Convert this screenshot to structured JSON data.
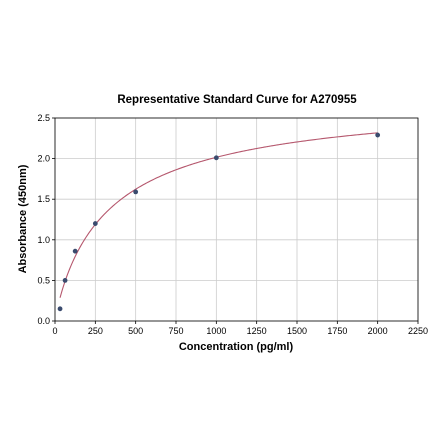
{
  "chart_data": {
    "type": "scatter",
    "title": "Representative Standard Curve for A270955",
    "xlabel": "Concentration (pg/ml)",
    "ylabel": "Absorbance (450nm)",
    "xlim": [
      0,
      2250
    ],
    "ylim": [
      0,
      2.5
    ],
    "xticks": [
      0,
      250,
      500,
      750,
      1000,
      1250,
      1500,
      1750,
      2000,
      2250
    ],
    "yticks": [
      0.0,
      0.5,
      1.0,
      1.5,
      2.0,
      2.5
    ],
    "xtick_labels": [
      "0",
      "250",
      "500",
      "750",
      "1000",
      "1250",
      "1500",
      "1750",
      "2000",
      "2250"
    ],
    "ytick_labels": [
      "0.0",
      "0.5",
      "1.0",
      "1.5",
      "2.0",
      "2.5"
    ],
    "grid": true,
    "points": {
      "x": [
        31.25,
        62.5,
        125,
        250,
        500,
        1000,
        2000
      ],
      "y": [
        0.15,
        0.5,
        0.86,
        1.2,
        1.59,
        2.01,
        2.29
      ]
    },
    "fit_curve": {
      "type": "4PL",
      "a": 0.0,
      "b": 0.9,
      "c": 350,
      "d": 2.8
    },
    "colors": {
      "point": "#3a4b6e",
      "curve": "#b5576d",
      "grid": "#cccccc",
      "axis": "#000000"
    }
  }
}
